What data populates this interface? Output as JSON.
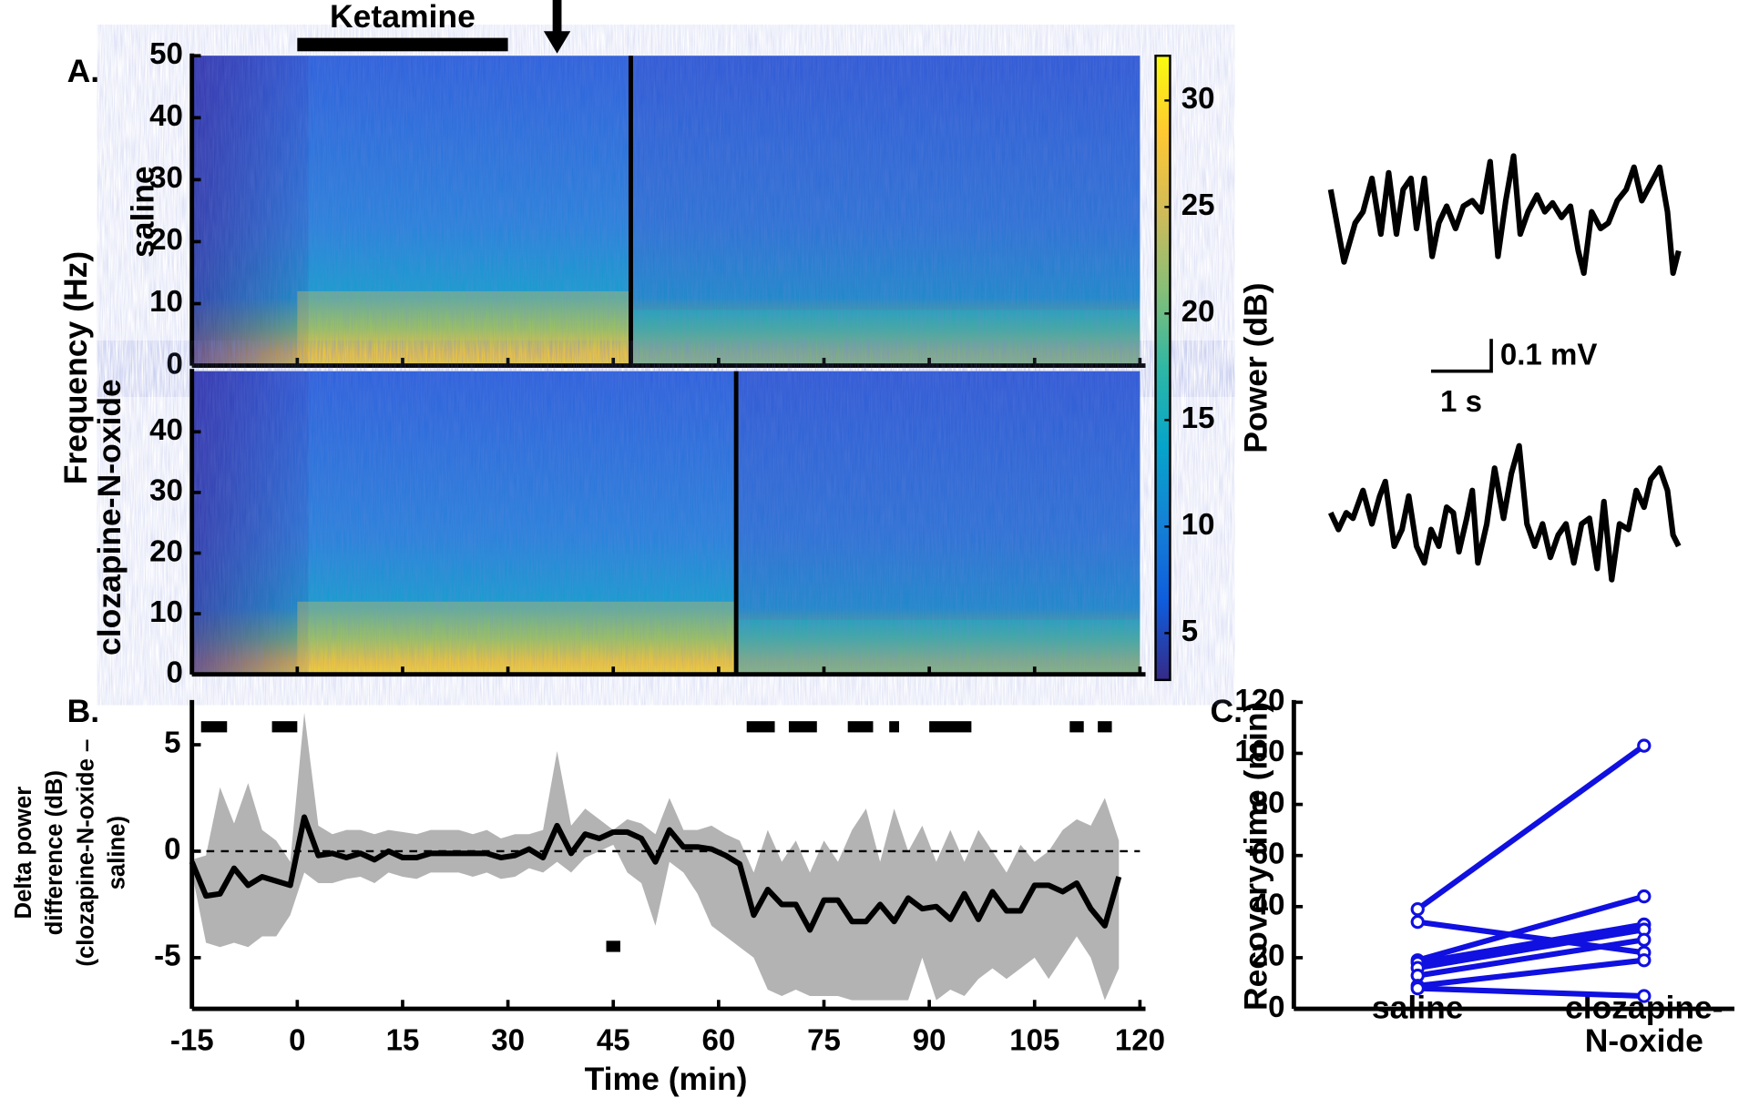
{
  "panel_labels": [
    "A.",
    "B.",
    "C."
  ],
  "scale_bar": {
    "voltage": "0.1 mV",
    "time": "1 s"
  },
  "chart_data": [
    {
      "type": "spectrogram",
      "label": "saline",
      "ylabel": "Frequency (Hz)",
      "annotation": "Ketamine",
      "drug_interval": [
        0,
        30
      ],
      "arrow_time": 37,
      "recovery_time": 47.5,
      "xlim": [
        -15,
        120
      ],
      "xticks": [
        -15,
        0,
        15,
        30,
        45,
        60,
        75,
        90,
        105,
        120
      ],
      "ylim": [
        0,
        50
      ],
      "yticks": [
        0,
        10,
        20,
        30,
        40,
        50
      ]
    },
    {
      "type": "spectrogram",
      "label": "clozapine-N-oxide",
      "recovery_time": 62.5,
      "xlim": [
        -15,
        120
      ],
      "xticks": [
        -15,
        0,
        15,
        30,
        45,
        60,
        75,
        90,
        105,
        120
      ],
      "ylim": [
        0,
        50
      ],
      "yticks": [
        0,
        10,
        20,
        30,
        40
      ]
    },
    {
      "type": "colorbar",
      "label": "Power (dB)",
      "ylim": [
        2.8,
        32.1
      ],
      "yticks": [
        5,
        10,
        15,
        20,
        25,
        30
      ],
      "colormap": [
        "#352a87",
        "#0f5cdd",
        "#1481d6",
        "#06a4ca",
        "#2eb7a4",
        "#87bf77",
        "#d1bb59",
        "#fec832",
        "#f9fb0e"
      ]
    },
    {
      "type": "line",
      "xlabel": "Time (min)",
      "ylabel": [
        "Delta power",
        "difference (dB)",
        "(clozapine-N-oxide –",
        "saline)"
      ],
      "color": "#000000",
      "band_color": "#b3b3b3",
      "xlim": [
        -15,
        120
      ],
      "xticks": [
        -15,
        0,
        15,
        30,
        45,
        60,
        75,
        90,
        105,
        120
      ],
      "ylim": [
        -7.4,
        7.1
      ],
      "yticks": [
        -5,
        0,
        5
      ],
      "x": [
        -15,
        -13,
        -11,
        -9,
        -7,
        -5,
        -3,
        -1,
        1,
        3,
        5,
        7,
        9,
        11,
        13,
        15,
        17,
        19,
        21,
        23,
        25,
        27,
        29,
        31,
        33,
        35,
        37,
        39,
        41,
        43,
        45,
        47,
        49,
        51,
        53,
        55,
        57,
        59,
        61,
        63,
        65,
        67,
        69,
        71,
        73,
        75,
        77,
        79,
        81,
        83,
        85,
        87,
        89,
        91,
        93,
        95,
        97,
        99,
        101,
        103,
        105,
        107,
        109,
        111,
        113,
        115,
        117
      ],
      "values": [
        -0.5,
        -2.1,
        -2.0,
        -0.8,
        -1.6,
        -1.2,
        -1.4,
        -1.6,
        1.6,
        -0.2,
        -0.1,
        -0.3,
        -0.1,
        -0.4,
        0.0,
        -0.3,
        -0.3,
        -0.1,
        -0.1,
        -0.1,
        -0.1,
        -0.1,
        -0.3,
        -0.2,
        0.1,
        -0.3,
        1.2,
        -0.1,
        0.8,
        0.6,
        0.9,
        0.9,
        0.6,
        -0.5,
        1.0,
        0.2,
        0.2,
        0.1,
        -0.2,
        -0.6,
        -3.0,
        -1.8,
        -2.5,
        -2.5,
        -3.7,
        -2.3,
        -2.3,
        -3.3,
        -3.3,
        -2.5,
        -3.3,
        -2.2,
        -2.7,
        -2.6,
        -3.2,
        -2.0,
        -3.2,
        -1.9,
        -2.8,
        -2.8,
        -1.6,
        -1.6,
        -1.9,
        -1.5,
        -2.7,
        -3.5,
        -1.2
      ],
      "upper": [
        -0.4,
        -0.2,
        3.0,
        1.3,
        3.2,
        1.0,
        0.5,
        -0.5,
        6.5,
        1.2,
        0.8,
        1.0,
        1.0,
        0.8,
        1.0,
        0.9,
        0.8,
        1.0,
        1.0,
        1.0,
        0.8,
        1.0,
        0.6,
        0.8,
        0.8,
        1.0,
        4.7,
        1.2,
        2.0,
        1.5,
        1.0,
        1.5,
        1.3,
        0.8,
        2.5,
        1.0,
        1.0,
        1.2,
        0.8,
        0.5,
        -1.0,
        1.0,
        -0.5,
        0.5,
        -1.0,
        0.5,
        -0.5,
        1.0,
        2.0,
        -0.5,
        2.0,
        0.0,
        1.2,
        -0.5,
        1.0,
        -0.5,
        1.0,
        0.0,
        -1.0,
        0.3,
        -0.5,
        0.0,
        1.0,
        1.5,
        1.2,
        2.5,
        0.5
      ],
      "lower": [
        -1.0,
        -4.3,
        -4.5,
        -4.3,
        -4.5,
        -4.0,
        -4.0,
        -3.0,
        -1.0,
        -1.5,
        -1.5,
        -1.3,
        -1.2,
        -1.5,
        -1.0,
        -1.2,
        -1.3,
        -1.0,
        -1.0,
        -1.0,
        -1.2,
        -1.0,
        -1.3,
        -1.2,
        -0.8,
        -1.0,
        -0.5,
        -1.0,
        -0.3,
        0.0,
        0.3,
        -1.0,
        -1.5,
        -3.5,
        -0.5,
        -1.0,
        -2.0,
        -3.5,
        -4.0,
        -4.5,
        -5.0,
        -6.5,
        -6.8,
        -6.5,
        -6.8,
        -6.8,
        -6.8,
        -7.0,
        -7.0,
        -7.0,
        -7.0,
        -7.0,
        -5.0,
        -7.0,
        -6.5,
        -6.8,
        -6.0,
        -5.5,
        -6.0,
        -5.5,
        -5.0,
        -6.0,
        -5.0,
        -4.0,
        -5.0,
        -7.0,
        -5.5
      ],
      "significance": [
        [
          -13.7,
          -10
        ],
        [
          -3.6,
          0
        ],
        [
          64,
          68
        ],
        [
          70,
          74
        ],
        [
          78.4,
          82
        ],
        [
          84.3,
          85.7
        ],
        [
          90,
          96
        ],
        [
          110,
          112
        ],
        [
          114,
          116
        ]
      ],
      "significance_low": [
        [
          44,
          46
        ]
      ]
    },
    {
      "type": "slope",
      "ylabel": "Recovery time (min)",
      "color": "#1010e0",
      "categories": [
        "saline",
        "clozapine-\nN-oxide"
      ],
      "ylim": [
        0,
        120
      ],
      "yticks": [
        0,
        20,
        40,
        60,
        80,
        100,
        120
      ],
      "series": [
        {
          "values": [
            39,
            103
          ]
        },
        {
          "values": [
            34,
            22
          ]
        },
        {
          "values": [
            19,
            44
          ]
        },
        {
          "values": [
            18,
            33
          ]
        },
        {
          "values": [
            16,
            31
          ]
        },
        {
          "values": [
            13,
            27
          ]
        },
        {
          "values": [
            9,
            19
          ]
        },
        {
          "values": [
            8,
            5
          ]
        }
      ]
    }
  ]
}
